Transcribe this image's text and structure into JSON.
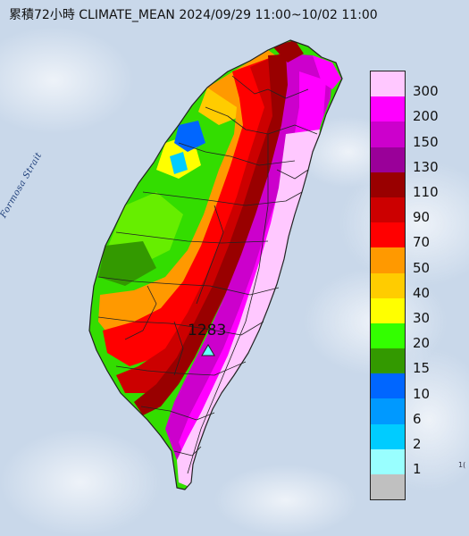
{
  "title": "累積72小時 CLIMATE_MEAN 2024/09/29 11:00~10/02 11:00",
  "strait_label": "Formosa Strait",
  "peak": {
    "value": "1283",
    "icon": "triangle-marker-icon"
  },
  "corner_mark": "1(",
  "legend": [
    {
      "label": "300",
      "color": "#ffc8ff"
    },
    {
      "label": "200",
      "color": "#ff00ff"
    },
    {
      "label": "150",
      "color": "#cc00cc"
    },
    {
      "label": "130",
      "color": "#9a0099"
    },
    {
      "label": "110",
      "color": "#990000"
    },
    {
      "label": "90",
      "color": "#cc0000"
    },
    {
      "label": "70",
      "color": "#ff0000"
    },
    {
      "label": "50",
      "color": "#ff9900"
    },
    {
      "label": "40",
      "color": "#ffcc00"
    },
    {
      "label": "30",
      "color": "#ffff00"
    },
    {
      "label": "20",
      "color": "#33ff00"
    },
    {
      "label": "15",
      "color": "#339900"
    },
    {
      "label": "10",
      "color": "#0066ff"
    },
    {
      "label": "6",
      "color": "#0099ff"
    },
    {
      "label": "2",
      "color": "#00ccff"
    },
    {
      "label": "1",
      "color": "#99ffff"
    },
    {
      "label": "",
      "color": "#c0c0c0"
    }
  ],
  "colors": {
    "sea": "#c9d8ea",
    "cloud": "#eef2f7",
    "boundary": "#222222",
    "marker": "#66ffff"
  }
}
